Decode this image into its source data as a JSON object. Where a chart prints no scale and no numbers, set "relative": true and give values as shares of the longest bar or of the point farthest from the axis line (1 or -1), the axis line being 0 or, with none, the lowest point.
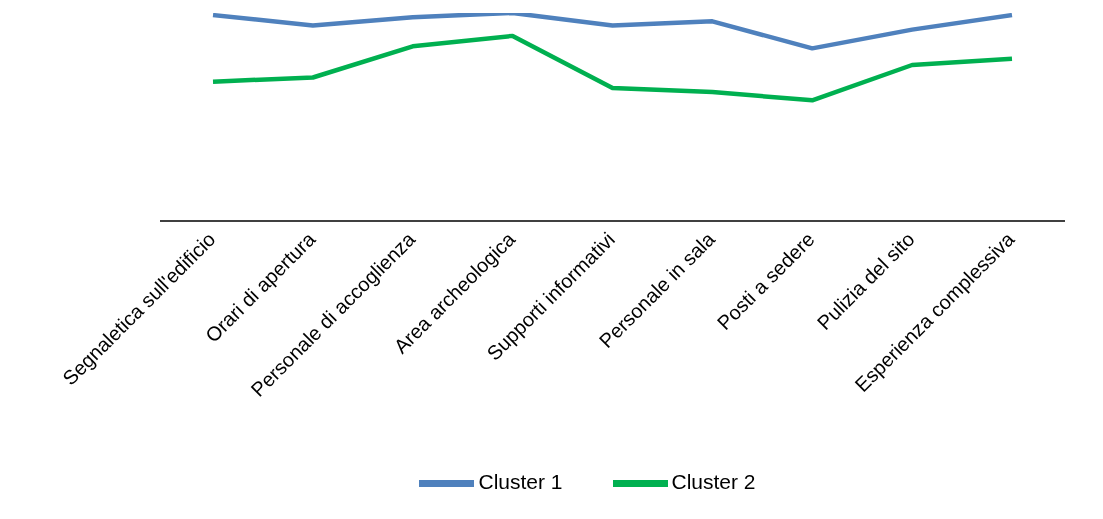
{
  "chart_data": {
    "type": "line",
    "relative": true,
    "categories": [
      "Segnaletica sull'edificio",
      "Orari di apertura",
      "Personale di accoglienza",
      "Area archeologica",
      "Supporti informativi",
      "Personale in sala",
      "Posti a sedere",
      "Pulizia del sito",
      "Esperienza complessiva"
    ],
    "series": [
      {
        "name": "Cluster 1",
        "color": "#4f81bd",
        "values": [
          0.99,
          0.94,
          0.98,
          1,
          0.94,
          0.96,
          0.83,
          0.92,
          0.99
        ]
      },
      {
        "name": "Cluster 2",
        "color": "#00b050",
        "values": [
          0.67,
          0.69,
          0.84,
          0.89,
          0.64,
          0.62,
          0.58,
          0.75,
          0.78
        ]
      }
    ],
    "legend": "bottom",
    "grid": false,
    "marker": "none",
    "line_style": "solid"
  }
}
